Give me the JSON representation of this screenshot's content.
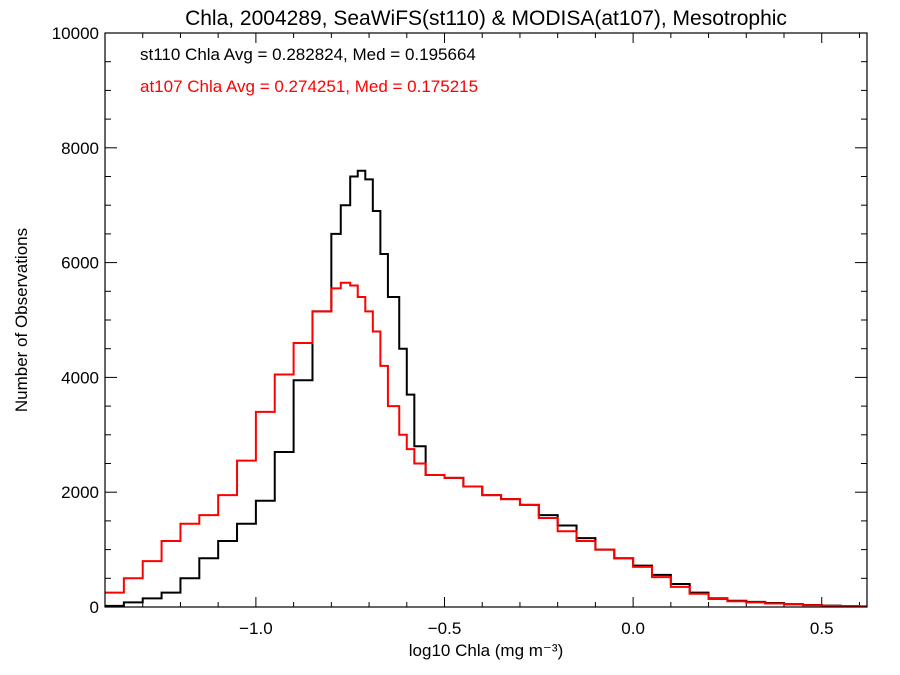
{
  "chart_data": {
    "type": "line",
    "title": "Chla, 2004289, SeaWiFS(st110) & MODISA(at107), Mesotrophic",
    "xlabel": "log10 Chla (mg m⁻³)",
    "ylabel": "Number of Observations",
    "xlim": [
      -1.4,
      0.62
    ],
    "ylim": [
      0,
      10000
    ],
    "x_ticks": [
      -1.0,
      -0.5,
      0.0,
      0.5
    ],
    "x_tick_labels": [
      "−1.0",
      "−0.5",
      "0.0",
      "0.5"
    ],
    "y_ticks": [
      0,
      2000,
      4000,
      6000,
      8000,
      10000
    ],
    "y_tick_labels": [
      "0",
      "2000",
      "4000",
      "6000",
      "8000",
      "10000"
    ],
    "annotations": [
      {
        "text": "st110 Chla Avg = 0.282824, Med = 0.195664",
        "color": "#000000"
      },
      {
        "text": "at107 Chla Avg = 0.274251, Med = 0.175215",
        "color": "#ff0000"
      }
    ],
    "series": [
      {
        "name": "st110",
        "color": "#000000",
        "step": true,
        "x": [
          -1.4,
          -1.35,
          -1.3,
          -1.25,
          -1.2,
          -1.15,
          -1.1,
          -1.05,
          -1.0,
          -0.95,
          -0.9,
          -0.85,
          -0.8,
          -0.775,
          -0.75,
          -0.73,
          -0.71,
          -0.69,
          -0.67,
          -0.65,
          -0.62,
          -0.6,
          -0.58,
          -0.55,
          -0.5,
          -0.45,
          -0.4,
          -0.35,
          -0.3,
          -0.25,
          -0.2,
          -0.15,
          -0.1,
          -0.05,
          0.0,
          0.05,
          0.1,
          0.15,
          0.2,
          0.25,
          0.3,
          0.35,
          0.4,
          0.45,
          0.5,
          0.55,
          0.6
        ],
        "y": [
          20,
          80,
          150,
          250,
          500,
          850,
          1150,
          1450,
          1850,
          2700,
          3950,
          5150,
          6500,
          7000,
          7500,
          7600,
          7450,
          6900,
          6150,
          5400,
          4500,
          3700,
          2800,
          2300,
          2250,
          2100,
          1950,
          1880,
          1780,
          1600,
          1420,
          1200,
          1000,
          850,
          720,
          560,
          400,
          250,
          150,
          110,
          90,
          70,
          50,
          35,
          25,
          15,
          10
        ]
      },
      {
        "name": "at107",
        "color": "#ff0000",
        "step": true,
        "x": [
          -1.4,
          -1.35,
          -1.3,
          -1.25,
          -1.2,
          -1.15,
          -1.1,
          -1.05,
          -1.0,
          -0.95,
          -0.9,
          -0.85,
          -0.8,
          -0.775,
          -0.75,
          -0.73,
          -0.71,
          -0.69,
          -0.67,
          -0.65,
          -0.62,
          -0.6,
          -0.58,
          -0.55,
          -0.5,
          -0.45,
          -0.4,
          -0.35,
          -0.3,
          -0.25,
          -0.2,
          -0.15,
          -0.1,
          -0.05,
          0.0,
          0.05,
          0.1,
          0.15,
          0.2,
          0.25,
          0.3,
          0.35,
          0.4,
          0.45,
          0.5,
          0.55,
          0.6
        ],
        "y": [
          250,
          500,
          800,
          1150,
          1450,
          1600,
          1950,
          2550,
          3400,
          4050,
          4600,
          5150,
          5550,
          5650,
          5600,
          5400,
          5150,
          4800,
          4200,
          3500,
          3000,
          2750,
          2500,
          2300,
          2250,
          2100,
          1950,
          1880,
          1780,
          1550,
          1320,
          1150,
          1000,
          850,
          700,
          520,
          350,
          230,
          140,
          100,
          80,
          60,
          45,
          30,
          20,
          15,
          10
        ]
      }
    ]
  }
}
